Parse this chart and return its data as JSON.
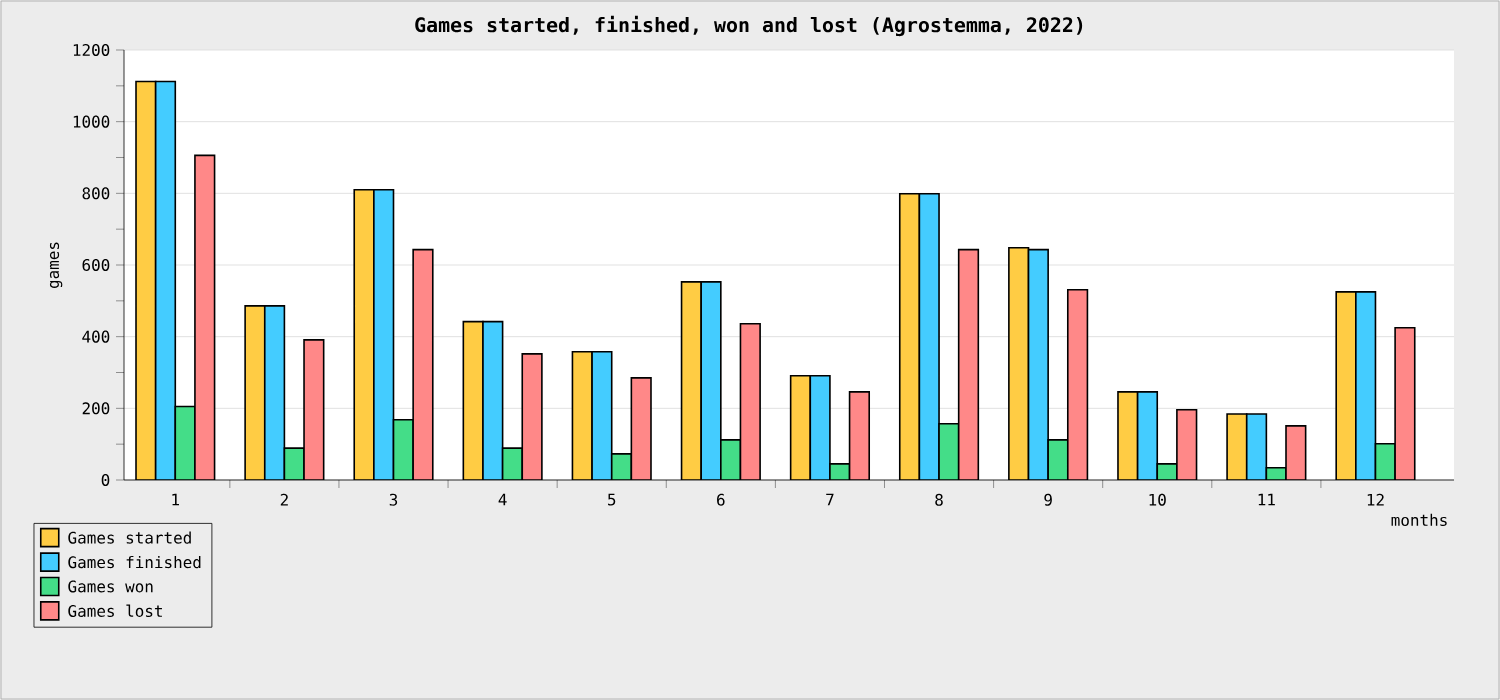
{
  "chart_data": {
    "type": "bar",
    "title": "Games started, finished, won and lost (Agrostemma, 2022)",
    "xlabel": "months",
    "ylabel": "games",
    "categories": [
      "1",
      "2",
      "3",
      "4",
      "5",
      "6",
      "7",
      "8",
      "9",
      "10",
      "11",
      "12"
    ],
    "series": [
      {
        "name": "Games started",
        "color": "#ffcc44",
        "values": [
          1112,
          486,
          810,
          442,
          358,
          553,
          291,
          799,
          648,
          246,
          184,
          525
        ]
      },
      {
        "name": "Games finished",
        "color": "#44ccff",
        "values": [
          1112,
          486,
          810,
          442,
          358,
          553,
          291,
          799,
          643,
          246,
          184,
          525
        ]
      },
      {
        "name": "Games won",
        "color": "#44dd88",
        "values": [
          205,
          89,
          168,
          89,
          73,
          112,
          45,
          157,
          112,
          45,
          34,
          101
        ]
      },
      {
        "name": "Games lost",
        "color": "#ff8888",
        "values": [
          906,
          391,
          643,
          352,
          285,
          436,
          246,
          643,
          531,
          196,
          151,
          425
        ]
      }
    ],
    "ylim": [
      0,
      1200
    ],
    "yticks": [
      0,
      200,
      400,
      600,
      800,
      1000,
      1200
    ],
    "grid": "y",
    "legend": "bottom left"
  }
}
